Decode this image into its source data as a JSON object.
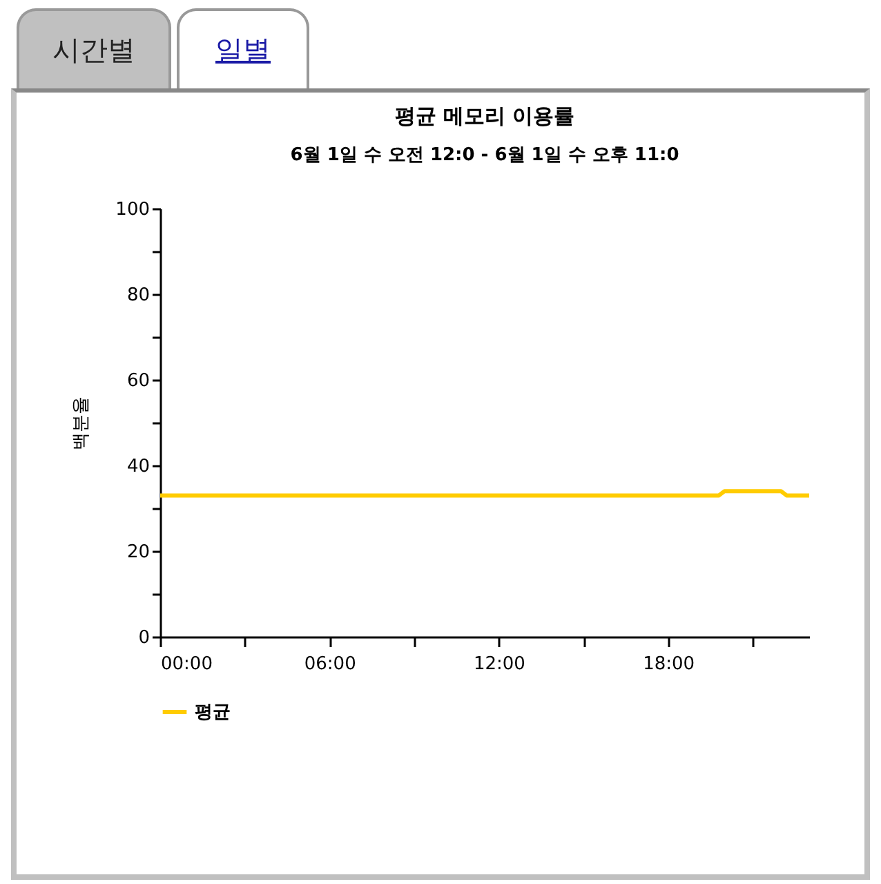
{
  "chart_data": {
    "type": "line",
    "title": "평균 메모리 이용률",
    "subtitle": "6월 1일 수 오전 12:0 - 6월 1일 수 오후 11:0",
    "ylabel": "백분율",
    "annotations": [
      "시간별",
      "일별"
    ],
    "x": [
      0,
      19.8,
      20,
      22,
      22.2,
      23
    ],
    "series": [
      {
        "name": "평균",
        "color": "#ffcc00",
        "values": [
          33,
          33,
          34,
          34,
          33,
          33
        ]
      }
    ],
    "xlim": [
      0,
      23
    ],
    "xticks": [
      {
        "value": 0,
        "label": "00:00"
      },
      {
        "value": 3,
        "label": null
      },
      {
        "value": 6,
        "label": "06:00"
      },
      {
        "value": 9,
        "label": null
      },
      {
        "value": 12,
        "label": "12:00"
      },
      {
        "value": 15,
        "label": null
      },
      {
        "value": 18,
        "label": "18:00"
      },
      {
        "value": 21,
        "label": null
      }
    ],
    "ylim": [
      0,
      100
    ],
    "yticks": [
      0,
      {
        "value": 10,
        "label": null
      },
      20,
      {
        "value": 30,
        "label": null
      },
      40,
      {
        "value": 50,
        "label": null
      },
      60,
      {
        "value": 70,
        "label": null
      },
      80,
      {
        "value": 90,
        "label": null
      },
      100
    ],
    "grid": false,
    "legend": "bottom",
    "marker": "none",
    "line_style": "solid"
  }
}
